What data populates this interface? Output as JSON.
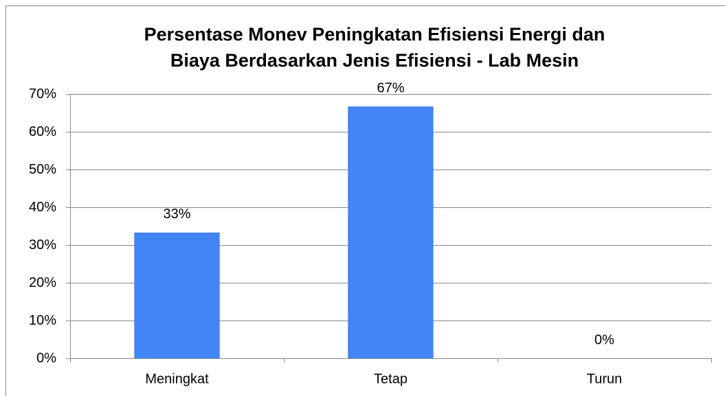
{
  "chart_data": {
    "type": "bar",
    "title": [
      "Persentase Monev Peningkatan Efisiensi Energi dan",
      "Biaya Berdasarkan Jenis Efisiensi - Lab Mesin"
    ],
    "categories": [
      "Meningkat",
      "Tetap",
      "Turun"
    ],
    "values": [
      33.3,
      66.7,
      0
    ],
    "value_labels": [
      "33%",
      "67%",
      "0%"
    ],
    "color": "#4285f4",
    "ylim": [
      0,
      70
    ],
    "yticks": [
      {
        "value": 0,
        "label": "0%"
      },
      {
        "value": 10,
        "label": "10%"
      },
      {
        "value": 20,
        "label": "20%"
      },
      {
        "value": 30,
        "label": "30%"
      },
      {
        "value": 40,
        "label": "40%"
      },
      {
        "value": 50,
        "label": "50%"
      },
      {
        "value": 60,
        "label": "60%"
      },
      {
        "value": 70,
        "label": "70%"
      }
    ],
    "grid": true
  }
}
